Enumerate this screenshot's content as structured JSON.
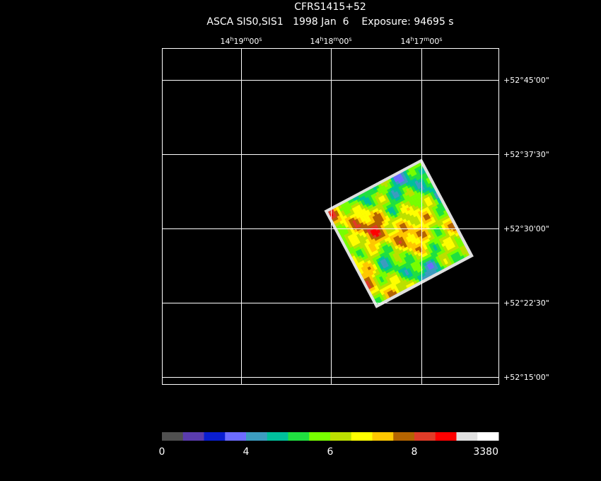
{
  "header": {
    "title": "CFRS1415+52",
    "subtitle": "ASCA SIS0,SIS1   1998 Jan  6    Exposure: 94695 s"
  },
  "ra_labels": [
    {
      "hours": "14",
      "h": "h",
      "minutes": "19",
      "m": "m",
      "seconds": "00",
      "s": "s"
    },
    {
      "hours": "14",
      "h": "h",
      "minutes": "18",
      "m": "m",
      "seconds": "00",
      "s": "s"
    },
    {
      "hours": "14",
      "h": "h",
      "minutes": "17",
      "m": "m",
      "seconds": "00",
      "s": "s"
    }
  ],
  "dec_labels": [
    "+52°45'00\"",
    "+52°37'30\"",
    "+52°30'00\"",
    "+52°22'30\"",
    "+52°15'00\""
  ],
  "colorbar": {
    "colors": [
      "#505050",
      "#5a3cae",
      "#0a1ed0",
      "#6c6cff",
      "#3c9cc0",
      "#00c09c",
      "#20e040",
      "#78ff00",
      "#bce000",
      "#ffff00",
      "#ffc800",
      "#b46400",
      "#e03c28",
      "#ff0000",
      "#e0e0e0",
      "#ffffff"
    ],
    "labels": [
      "0",
      "4",
      "6",
      "8",
      "3380"
    ]
  }
}
